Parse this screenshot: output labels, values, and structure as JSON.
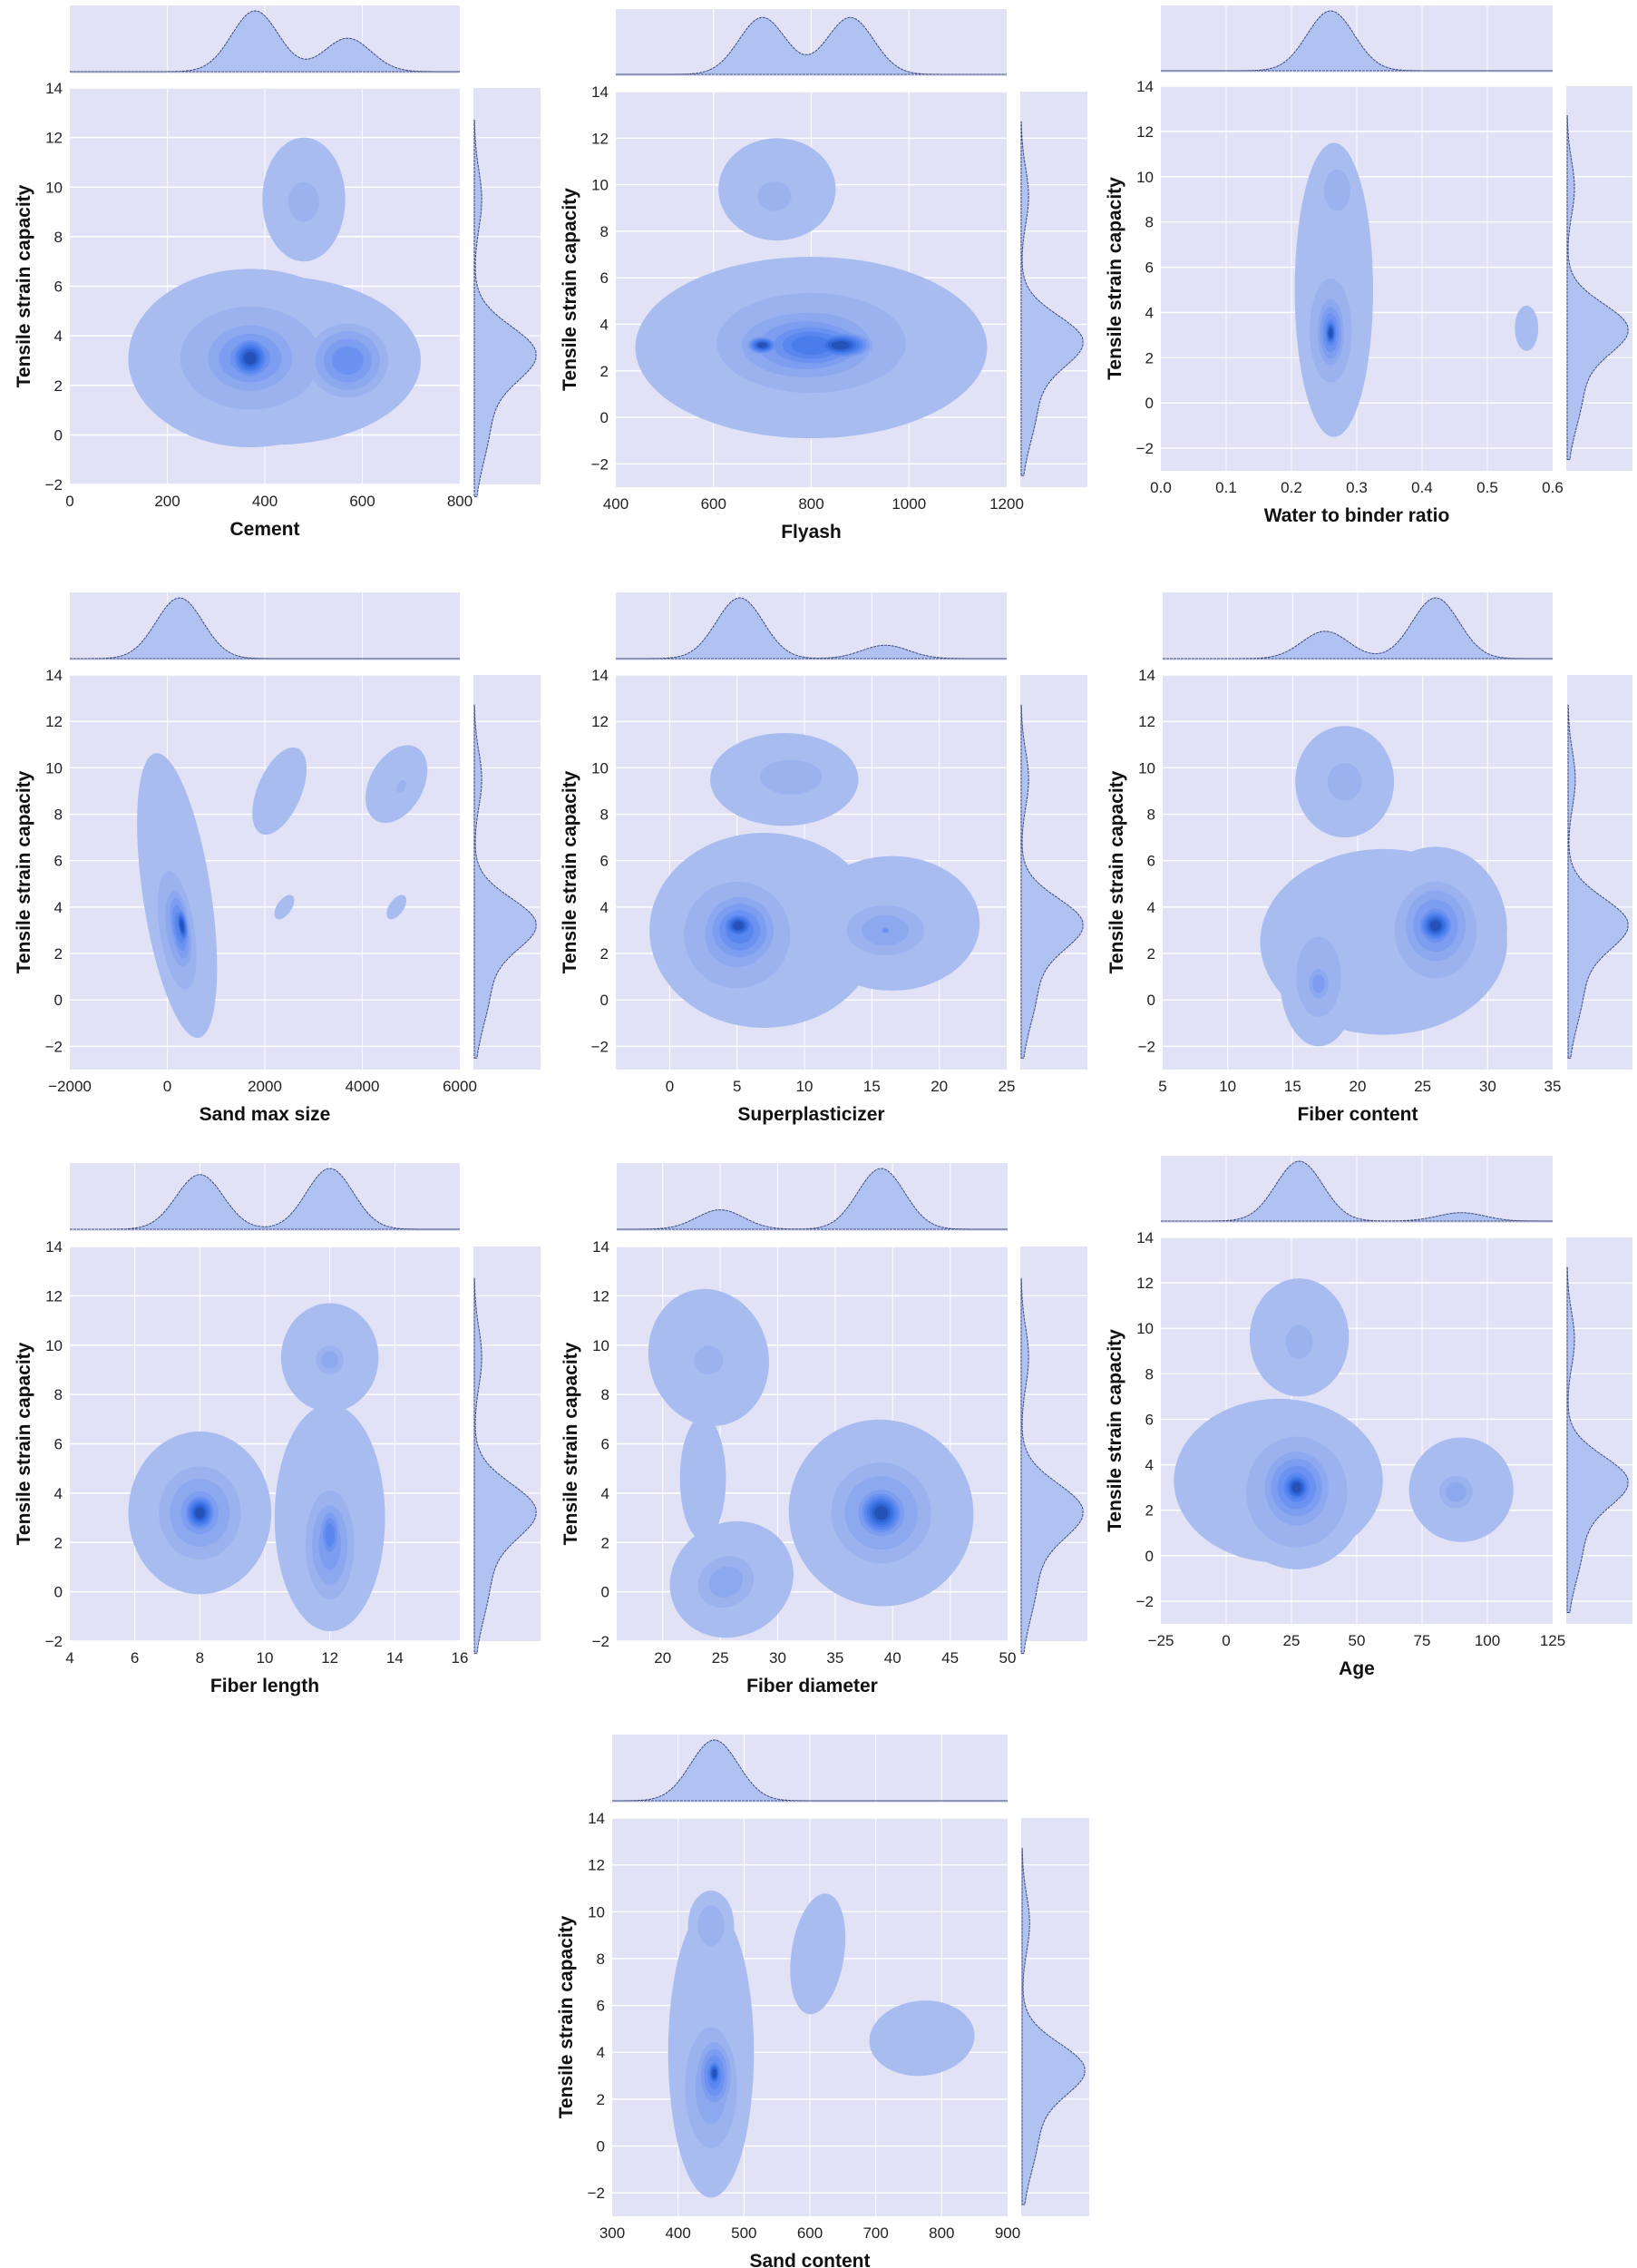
{
  "figure": {
    "background": "#ffffff",
    "axes_facecolor": "#e2e2f7",
    "grid_color": "#ffffff",
    "kde_colors": [
      "#a8bcf0",
      "#9bb2ef",
      "#8ca8ee",
      "#7d9df0",
      "#6b92f0",
      "#5a87ef",
      "#4a7de9",
      "#3a71e2",
      "#2e63d6",
      "#2652b8",
      "#1f4499"
    ],
    "marginal_fill": "#b0c2f2",
    "marginal_line": "#3a4a7a"
  },
  "chart_data": [
    {
      "type": "kde_jointplot",
      "xlabel": "Cement",
      "ylabel": "Tensile strain capacity",
      "xlim": [
        0,
        800
      ],
      "ylim": [
        -2,
        14
      ],
      "xticks": [
        "0",
        "200",
        "400",
        "600",
        "800"
      ],
      "yticks": [
        "−2",
        "0",
        "2",
        "4",
        "6",
        "8",
        "10",
        "12",
        "14"
      ],
      "modes": [
        {
          "x": 370,
          "y": 3.1,
          "level": 10
        },
        {
          "x": 570,
          "y": 3.0,
          "level": 6
        },
        {
          "x": 480,
          "y": 9.5,
          "level": 2
        }
      ],
      "marginal_x_peaks": [
        {
          "x": 380,
          "h": 1.0
        },
        {
          "x": 570,
          "h": 0.55
        }
      ],
      "marginal_y_peak": 3.3
    },
    {
      "type": "kde_jointplot",
      "xlabel": "Flyash",
      "ylabel": "Tensile strain capacity",
      "xlim": [
        400,
        1200
      ],
      "ylim": [
        -3,
        14
      ],
      "xticks": [
        "400",
        "600",
        "800",
        "1000",
        "1200"
      ],
      "yticks": [
        "−2",
        "0",
        "2",
        "4",
        "6",
        "8",
        "10",
        "12",
        "14"
      ],
      "modes": [
        {
          "x": 700,
          "y": 3.1,
          "level": 10
        },
        {
          "x": 860,
          "y": 3.1,
          "level": 10
        },
        {
          "x": 730,
          "y": 9.5,
          "level": 3
        }
      ],
      "marginal_x_peaks": [
        {
          "x": 700,
          "h": 0.95
        },
        {
          "x": 880,
          "h": 0.95
        }
      ],
      "marginal_y_peak": 3.3
    },
    {
      "type": "kde_jointplot",
      "xlabel": "Water to binder ratio",
      "ylabel": "Tensile strain capacity",
      "xlim": [
        0.0,
        0.6
      ],
      "ylim": [
        -3,
        14
      ],
      "xticks": [
        "0.0",
        "0.1",
        "0.2",
        "0.3",
        "0.4",
        "0.5",
        "0.6"
      ],
      "yticks": [
        "−2",
        "0",
        "2",
        "4",
        "6",
        "8",
        "10",
        "12",
        "14"
      ],
      "modes": [
        {
          "x": 0.26,
          "y": 3.1,
          "level": 10
        },
        {
          "x": 0.27,
          "y": 9.4,
          "level": 2
        },
        {
          "x": 0.56,
          "y": 3.3,
          "level": 1
        }
      ],
      "marginal_x_peaks": [
        {
          "x": 0.26,
          "h": 1.0
        }
      ],
      "marginal_y_peak": 3.3
    },
    {
      "type": "kde_jointplot",
      "xlabel": "Sand max size",
      "ylabel": "Tensile strain capacity",
      "xlim": [
        -2000,
        6000
      ],
      "ylim": [
        -3,
        14
      ],
      "xticks": [
        "−2000",
        "0",
        "2000",
        "4000",
        "6000"
      ],
      "yticks": [
        "−2",
        "0",
        "2",
        "4",
        "6",
        "8",
        "10",
        "12",
        "14"
      ],
      "modes": [
        {
          "x": 250,
          "y": 3.1,
          "level": 10
        },
        {
          "x": 2400,
          "y": 9.0,
          "level": 1
        },
        {
          "x": 4700,
          "y": 9.2,
          "level": 2
        },
        {
          "x": 2400,
          "y": 4.0,
          "level": 1
        },
        {
          "x": 4700,
          "y": 4.0,
          "level": 1
        }
      ],
      "marginal_x_peaks": [
        {
          "x": 250,
          "h": 1.0
        }
      ],
      "marginal_y_peak": 3.3
    },
    {
      "type": "kde_jointplot",
      "xlabel": "Superplasticizer",
      "ylabel": "Tensile strain capacity",
      "xlim": [
        -4,
        25
      ],
      "ylim": [
        -3,
        14
      ],
      "xticks": [
        "0",
        "5",
        "10",
        "15",
        "20",
        "25"
      ],
      "yticks": [
        "−2",
        "0",
        "2",
        "4",
        "6",
        "8",
        "10",
        "12",
        "14"
      ],
      "modes": [
        {
          "x": 5,
          "y": 3.2,
          "level": 10
        },
        {
          "x": 16,
          "y": 3.0,
          "level": 4
        },
        {
          "x": 8,
          "y": 9.5,
          "level": 2
        }
      ],
      "marginal_x_peaks": [
        {
          "x": 5.2,
          "h": 1.0
        },
        {
          "x": 16,
          "h": 0.22
        }
      ],
      "marginal_y_peak": 3.3
    },
    {
      "type": "kde_jointplot",
      "xlabel": "Fiber content",
      "ylabel": "Tensile strain capacity",
      "xlim": [
        5,
        35
      ],
      "ylim": [
        -3,
        14
      ],
      "xticks": [
        "5",
        "10",
        "15",
        "20",
        "25",
        "30",
        "35"
      ],
      "yticks": [
        "−2",
        "0",
        "2",
        "4",
        "6",
        "8",
        "10",
        "12",
        "14"
      ],
      "modes": [
        {
          "x": 26,
          "y": 3.2,
          "level": 10
        },
        {
          "x": 17,
          "y": 0.7,
          "level": 4
        },
        {
          "x": 19,
          "y": 9.5,
          "level": 2
        }
      ],
      "marginal_x_peaks": [
        {
          "x": 17.5,
          "h": 0.45
        },
        {
          "x": 26,
          "h": 1.0
        }
      ],
      "marginal_y_peak": 3.3
    },
    {
      "type": "kde_jointplot",
      "xlabel": "Fiber length",
      "ylabel": "Tensile strain capacity",
      "xlim": [
        4,
        16
      ],
      "ylim": [
        -2,
        14
      ],
      "xticks": [
        "4",
        "6",
        "8",
        "10",
        "12",
        "14",
        "16"
      ],
      "yticks": [
        "−2",
        "0",
        "2",
        "4",
        "6",
        "8",
        "10",
        "12",
        "14"
      ],
      "modes": [
        {
          "x": 8,
          "y": 3.2,
          "level": 10
        },
        {
          "x": 12,
          "y": 2.0,
          "level": 6
        },
        {
          "x": 12,
          "y": 9.4,
          "level": 3
        }
      ],
      "marginal_x_peaks": [
        {
          "x": 8,
          "h": 0.9
        },
        {
          "x": 12,
          "h": 1.0
        }
      ],
      "marginal_y_peak": 3.3
    },
    {
      "type": "kde_jointplot",
      "xlabel": "Fiber diameter",
      "ylabel": "Tensile strain capacity",
      "xlim": [
        16,
        50
      ],
      "ylim": [
        -2,
        14
      ],
      "xticks": [
        "20",
        "25",
        "30",
        "35",
        "40",
        "45",
        "50"
      ],
      "yticks": [
        "−2",
        "0",
        "2",
        "4",
        "6",
        "8",
        "10",
        "12",
        "14"
      ],
      "modes": [
        {
          "x": 39,
          "y": 3.2,
          "level": 10
        },
        {
          "x": 26,
          "y": 0.3,
          "level": 3
        },
        {
          "x": 24,
          "y": 9.4,
          "level": 2
        }
      ],
      "marginal_x_peaks": [
        {
          "x": 25,
          "h": 0.32
        },
        {
          "x": 39,
          "h": 1.0
        }
      ],
      "marginal_y_peak": 3.3
    },
    {
      "type": "kde_jointplot",
      "xlabel": "Age",
      "ylabel": "Tensile strain capacity",
      "xlim": [
        -25,
        125
      ],
      "ylim": [
        -3,
        14
      ],
      "xticks": [
        "−25",
        "0",
        "25",
        "50",
        "75",
        "100",
        "125"
      ],
      "yticks": [
        "−2",
        "0",
        "2",
        "4",
        "6",
        "8",
        "10",
        "12",
        "14"
      ],
      "modes": [
        {
          "x": 27,
          "y": 3.0,
          "level": 10
        },
        {
          "x": 90,
          "y": 2.8,
          "level": 3
        },
        {
          "x": 28,
          "y": 9.4,
          "level": 2
        }
      ],
      "marginal_x_peaks": [
        {
          "x": 28,
          "h": 1.0
        },
        {
          "x": 90,
          "h": 0.14
        }
      ],
      "marginal_y_peak": 3.3
    },
    {
      "type": "kde_jointplot",
      "xlabel": "Sand content",
      "ylabel": "Tensile strain capacity",
      "xlim": [
        300,
        900
      ],
      "ylim": [
        -3,
        14
      ],
      "xticks": [
        "300",
        "400",
        "500",
        "600",
        "700",
        "800",
        "900"
      ],
      "yticks": [
        "−2",
        "0",
        "2",
        "4",
        "6",
        "8",
        "10",
        "12",
        "14"
      ],
      "modes": [
        {
          "x": 455,
          "y": 3.1,
          "level": 10
        },
        {
          "x": 450,
          "y": 9.4,
          "level": 2
        },
        {
          "x": 615,
          "y": 8.2,
          "level": 1
        },
        {
          "x": 770,
          "y": 4.5,
          "level": 1
        }
      ],
      "marginal_x_peaks": [
        {
          "x": 455,
          "h": 1.0
        }
      ],
      "marginal_y_peak": 3.3
    }
  ]
}
